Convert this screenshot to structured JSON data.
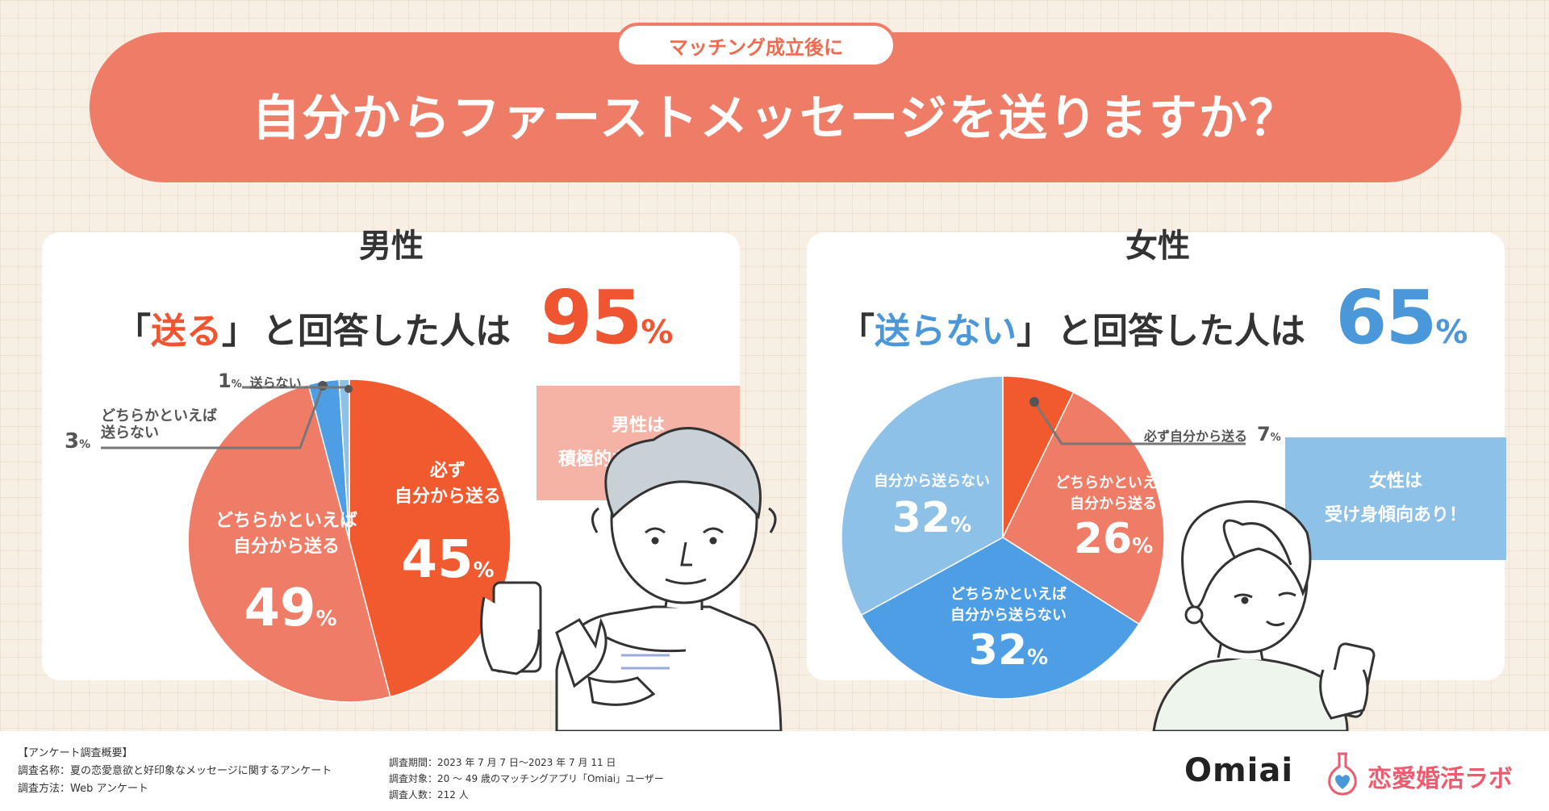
{
  "header": {
    "pill": "マッチング成立後に",
    "title": "自分からファーストメッセージを送りますか？"
  },
  "men": {
    "gender": "男性",
    "bracket_open": "「",
    "key": "送る",
    "bracket_close": "」",
    "phrase": "と回答した人は",
    "percent": "95",
    "pct_unit": "%",
    "note_l1": "男性は",
    "note_l2": "積極的な傾向あり！",
    "labels": {
      "s1_l1": "必ず",
      "s1_l2": "自分から送る",
      "s1_v": "45",
      "s2_l1": "どちらかといえば",
      "s2_l2": "自分から送る",
      "s2_v": "49",
      "s3_v": "3",
      "s3_l1": "どちらかといえば",
      "s3_l2": "送らない",
      "s4_v": "1",
      "s4_l1": "送らない",
      "unit": "%"
    }
  },
  "women": {
    "gender": "女性",
    "bracket_open": "「",
    "key": "送らない",
    "bracket_close": "」",
    "phrase": "と回答した人は",
    "percent": "65",
    "pct_unit": "%",
    "note_l1": "女性は",
    "note_l2": "受け身傾向あり！",
    "labels": {
      "s1_l1": "必ず自分から送る",
      "s1_v": "7",
      "s2_l1": "どちらかといえば",
      "s2_l2": "自分から送る",
      "s2_v": "26",
      "s3_l1": "どちらかといえば",
      "s3_l2": "自分から送らない",
      "s3_v": "32",
      "s4_l1": "自分から送らない",
      "s4_v": "32",
      "unit": "%"
    }
  },
  "chart_data": [
    {
      "type": "pie",
      "title": "男性",
      "categories": [
        "必ず自分から送る",
        "どちらかといえば自分から送る",
        "どちらかといえば送らない",
        "送らない"
      ],
      "values": [
        45,
        49,
        3,
        1
      ],
      "colors": [
        "#f15a2e",
        "#ef7c66",
        "#4d9ee5",
        "#8ec1e8"
      ]
    },
    {
      "type": "pie",
      "title": "女性",
      "categories": [
        "必ず自分から送る",
        "どちらかといえば自分から送る",
        "どちらかといえば自分から送らない",
        "自分から送らない"
      ],
      "values": [
        7,
        26,
        32,
        32
      ],
      "colors": [
        "#f15a2e",
        "#ef7c66",
        "#4d9ee5",
        "#8ec1e8"
      ]
    }
  ],
  "footer": {
    "h": "【アンケート調査概要】",
    "name": "調査名称：夏の恋愛意欲と好印象なメッセージに関するアンケート",
    "method": "調査方法：Web アンケート",
    "period": "調査期間：2023 年 7 月 7 日〜2023 年 7 月 11 日",
    "target": "調査対象：20 〜 49 歳のマッチングアプリ「Omiai」ユーザー",
    "count": "調査人数：212 人",
    "brand1": "Omiai",
    "brand2": "恋愛婚活ラボ"
  }
}
